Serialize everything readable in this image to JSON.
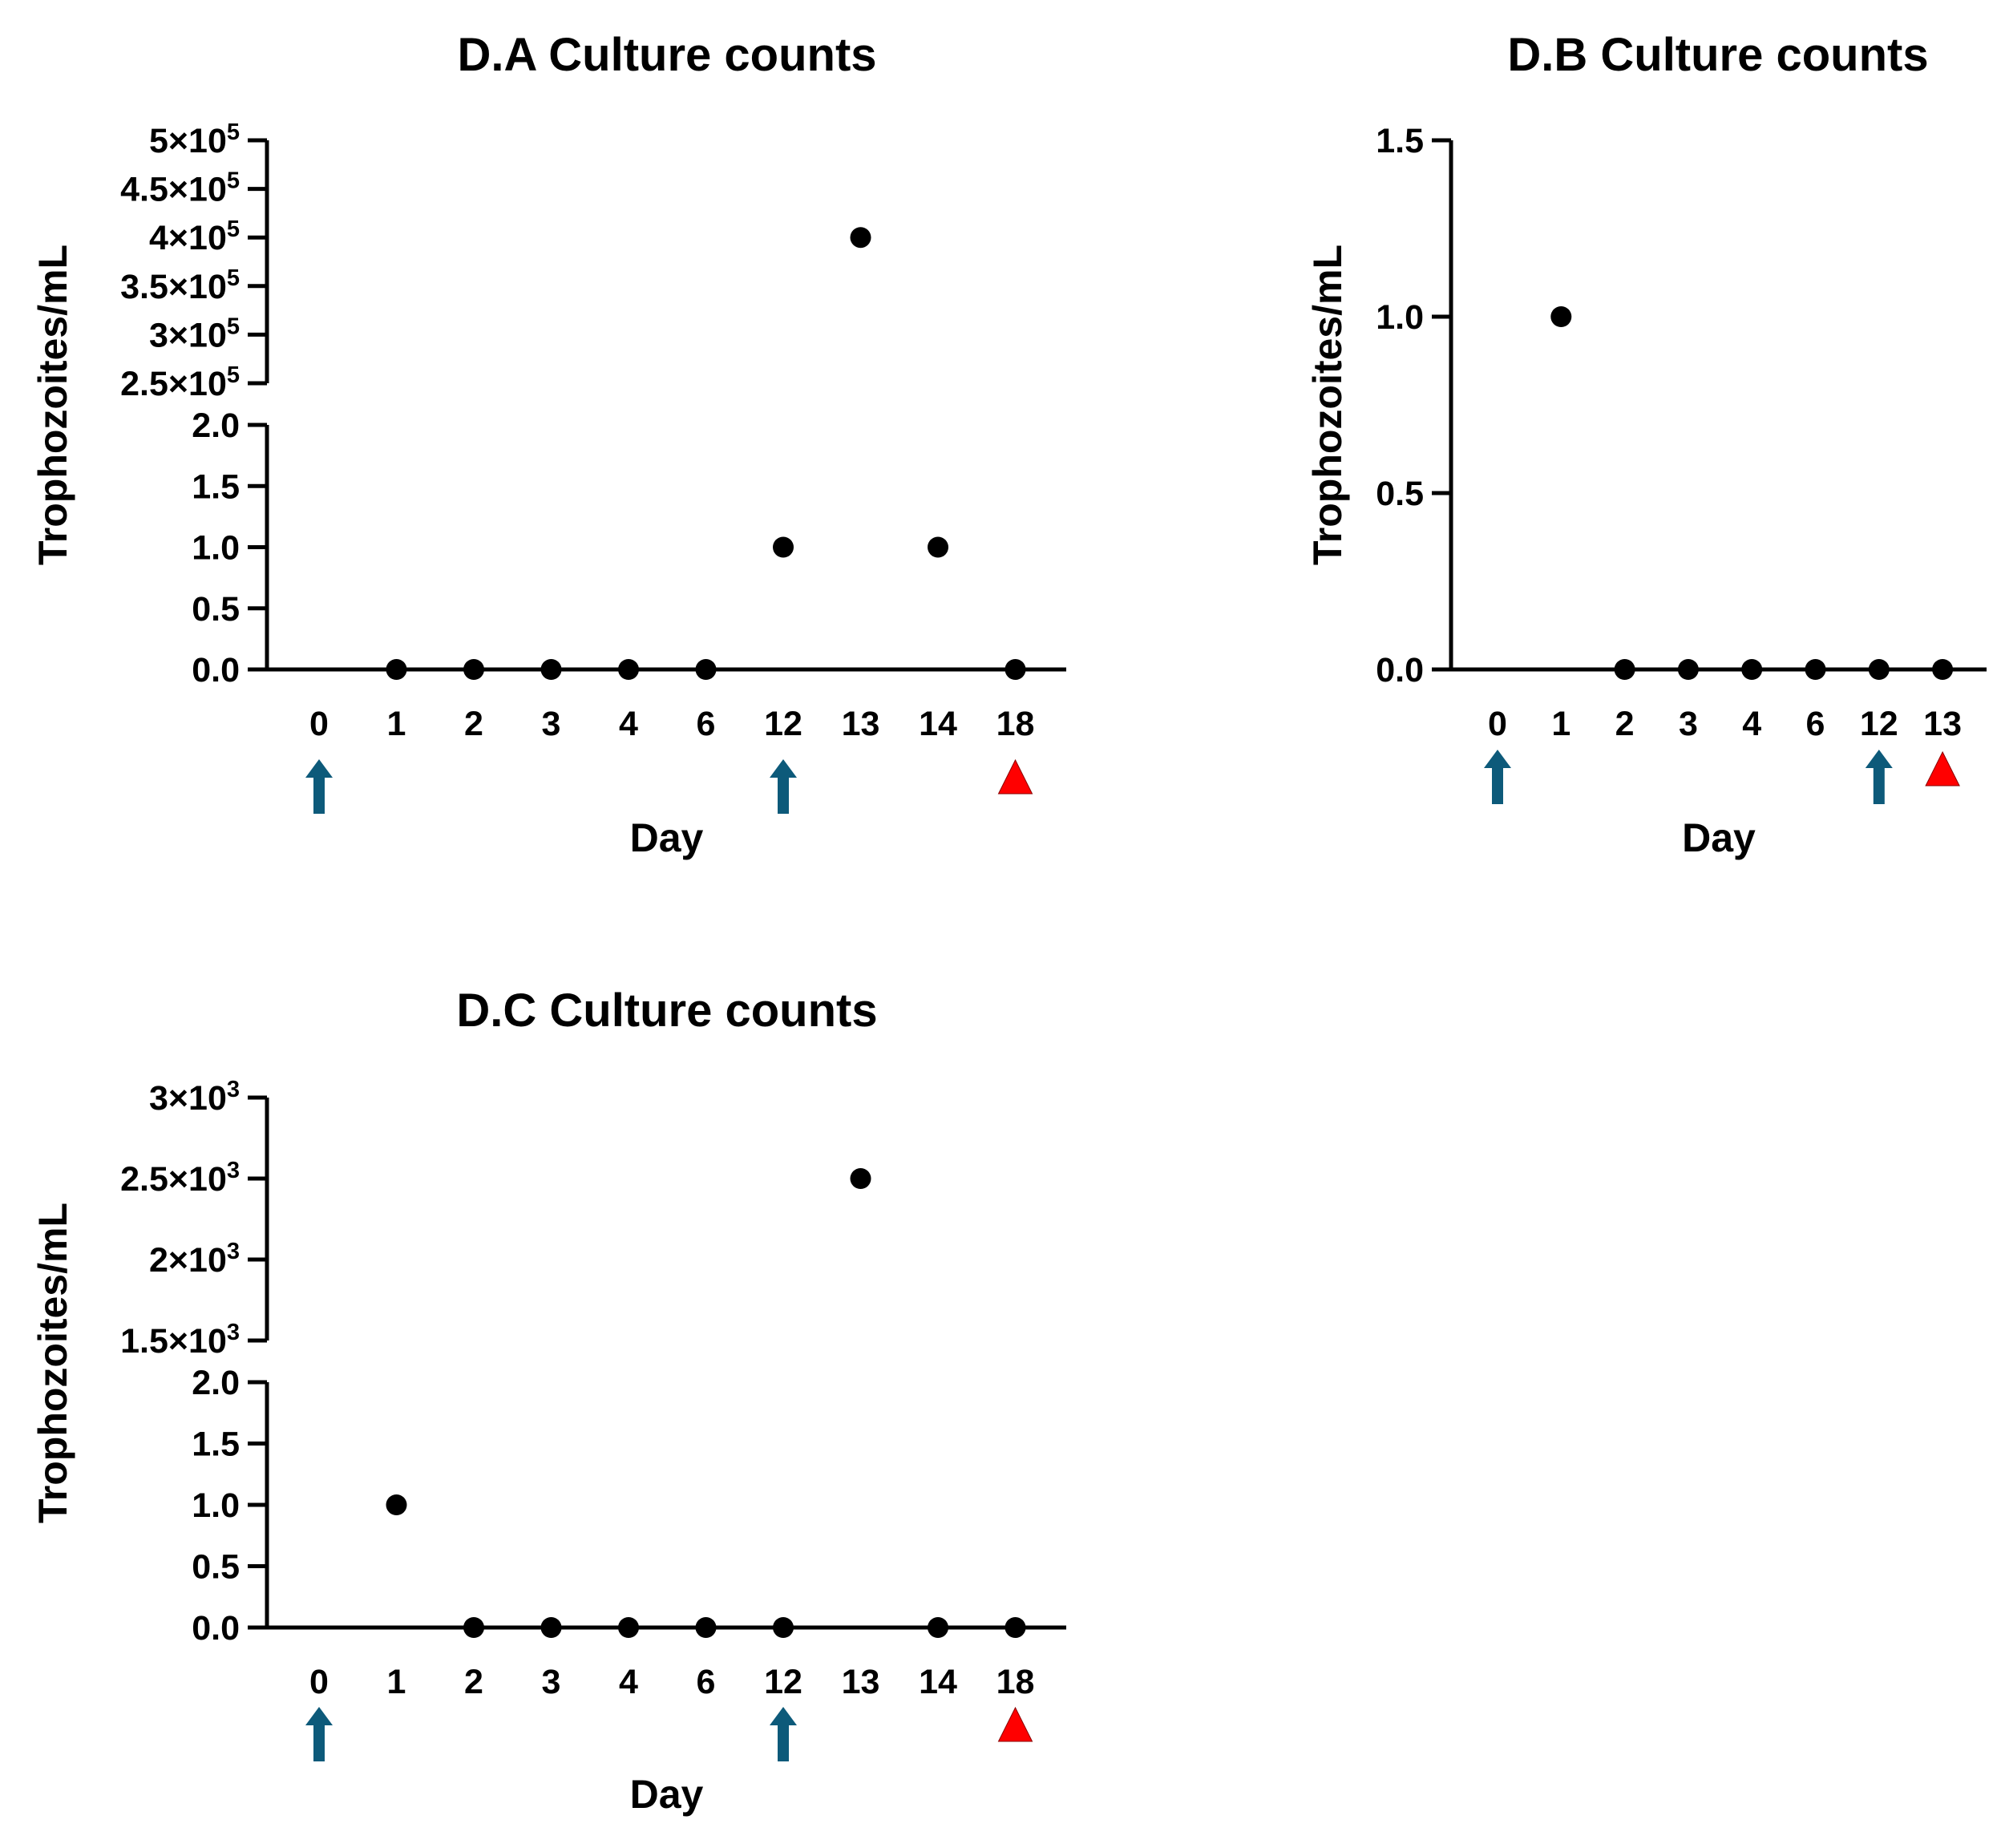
{
  "colors": {
    "axis": "#000000",
    "point": "#000000",
    "arrow": "#0d5a7a",
    "triangle": "#ff0000"
  },
  "marker_legend": {
    "arrow_icon": "up-arrow-icon",
    "triangle_icon": "red-triangle-icon"
  },
  "chart_data": [
    {
      "type": "scatter",
      "title": "D.A Culture counts",
      "xlabel": "Day",
      "ylabel": "Trophozoites/mL",
      "x_is_categorical": true,
      "categories": [
        "0",
        "1",
        "2",
        "3",
        "4",
        "6",
        "12",
        "13",
        "14",
        "18"
      ],
      "values": [
        null,
        0,
        0,
        0,
        0,
        0,
        1,
        400000,
        1,
        0
      ],
      "y_segments": [
        {
          "range": [
            0,
            2
          ],
          "ticks": [
            {
              "v": 0,
              "label": "0.0"
            },
            {
              "v": 0.5,
              "label": "0.5"
            },
            {
              "v": 1,
              "label": "1.0"
            },
            {
              "v": 1.5,
              "label": "1.5"
            },
            {
              "v": 2,
              "label": "2.0"
            }
          ]
        },
        {
          "range": [
            250000,
            500000
          ],
          "ticks": [
            {
              "v": 250000,
              "m": "2.5×10",
              "e": "5"
            },
            {
              "v": 300000,
              "m": "3×10",
              "e": "5"
            },
            {
              "v": 350000,
              "m": "3.5×10",
              "e": "5"
            },
            {
              "v": 400000,
              "m": "4×10",
              "e": "5"
            },
            {
              "v": 450000,
              "m": "4.5×10",
              "e": "5"
            },
            {
              "v": 500000,
              "m": "5×10",
              "e": "5"
            }
          ]
        }
      ],
      "arrow_days": [
        "0",
        "12"
      ],
      "triangle_days": [
        "18"
      ]
    },
    {
      "type": "scatter",
      "title": "D.B Culture counts",
      "xlabel": "Day",
      "ylabel": "Trophozoites/mL",
      "x_is_categorical": true,
      "categories": [
        "0",
        "1",
        "2",
        "3",
        "4",
        "6",
        "12",
        "13"
      ],
      "values": [
        null,
        1,
        0,
        0,
        0,
        0,
        0,
        0
      ],
      "y_segments": [
        {
          "range": [
            0,
            1.5
          ],
          "ticks": [
            {
              "v": 0,
              "label": "0.0"
            },
            {
              "v": 0.5,
              "label": "0.5"
            },
            {
              "v": 1,
              "label": "1.0"
            },
            {
              "v": 1.5,
              "label": "1.5"
            }
          ]
        }
      ],
      "arrow_days": [
        "0",
        "12"
      ],
      "triangle_days": [
        "13"
      ]
    },
    {
      "type": "scatter",
      "title": "D.C Culture counts",
      "xlabel": "Day",
      "ylabel": "Trophozoites/mL",
      "x_is_categorical": true,
      "categories": [
        "0",
        "1",
        "2",
        "3",
        "4",
        "6",
        "12",
        "13",
        "14",
        "18"
      ],
      "values": [
        null,
        1,
        0,
        0,
        0,
        0,
        0,
        2500,
        0,
        0
      ],
      "y_segments": [
        {
          "range": [
            0,
            2
          ],
          "ticks": [
            {
              "v": 0,
              "label": "0.0"
            },
            {
              "v": 0.5,
              "label": "0.5"
            },
            {
              "v": 1,
              "label": "1.0"
            },
            {
              "v": 1.5,
              "label": "1.5"
            },
            {
              "v": 2,
              "label": "2.0"
            }
          ]
        },
        {
          "range": [
            1500,
            3000
          ],
          "ticks": [
            {
              "v": 1500,
              "m": "1.5×10",
              "e": "3"
            },
            {
              "v": 2000,
              "m": "2×10",
              "e": "3"
            },
            {
              "v": 2500,
              "m": "2.5×10",
              "e": "3"
            },
            {
              "v": 3000,
              "m": "3×10",
              "e": "3"
            }
          ]
        }
      ],
      "arrow_days": [
        "0",
        "12"
      ],
      "triangle_days": [
        "18"
      ]
    }
  ]
}
